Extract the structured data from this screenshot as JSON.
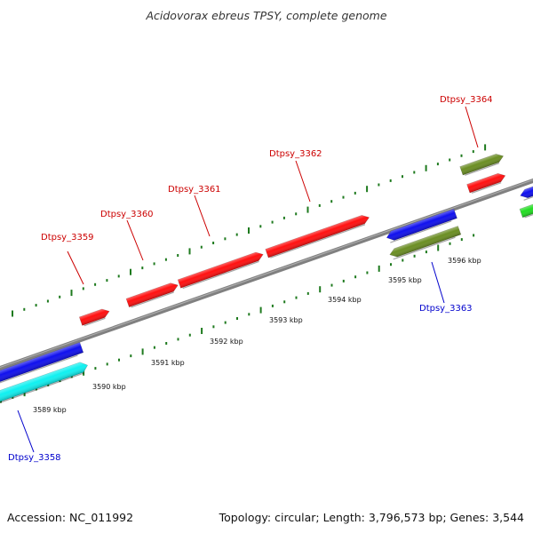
{
  "title": "Acidovorax ebreus TPSY, complete genome",
  "footer": {
    "accession": "Accession: NC_011992",
    "topology": "Topology: circular; Length: 3,796,573 bp; Genes: 3,544"
  },
  "colors": {
    "forward_gene": "#ff1010",
    "reverse_gene": "#1010ee",
    "cyan_gene": "#10f0f0",
    "olive_gene": "#6b8e23",
    "green_gene": "#22dd22",
    "axis": "#808080",
    "tick": "#1e7a1e",
    "forward_label": "#cc0000",
    "reverse_label": "#0000cc"
  },
  "genes": [
    {
      "id": "Dtpsy_3358",
      "strand": "reverse",
      "label_color": "reverse_label"
    },
    {
      "id": "Dtpsy_3359",
      "strand": "forward",
      "label_color": "forward_label"
    },
    {
      "id": "Dtpsy_3360",
      "strand": "forward",
      "label_color": "forward_label"
    },
    {
      "id": "Dtpsy_3361",
      "strand": "forward",
      "label_color": "forward_label"
    },
    {
      "id": "Dtpsy_3362",
      "strand": "forward",
      "label_color": "forward_label"
    },
    {
      "id": "Dtpsy_3363",
      "strand": "reverse",
      "label_color": "reverse_label"
    },
    {
      "id": "Dtpsy_3364",
      "strand": "forward",
      "label_color": "forward_label"
    }
  ],
  "scale_labels": [
    "3589 kbp",
    "3590 kbp",
    "3591 kbp",
    "3592 kbp",
    "3593 kbp",
    "3594 kbp",
    "3595 kbp",
    "3596 kbp"
  ]
}
